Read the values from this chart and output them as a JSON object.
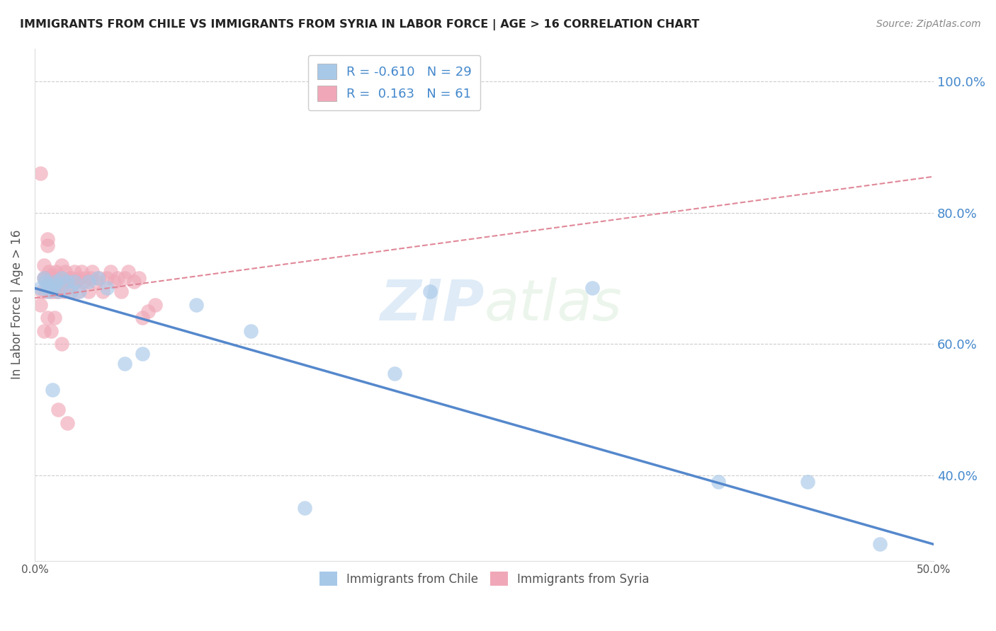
{
  "title": "IMMIGRANTS FROM CHILE VS IMMIGRANTS FROM SYRIA IN LABOR FORCE | AGE > 16 CORRELATION CHART",
  "source": "Source: ZipAtlas.com",
  "ylabel": "In Labor Force | Age > 16",
  "xlim": [
    0.0,
    0.5
  ],
  "ylim": [
    0.27,
    1.05
  ],
  "xticks": [
    0.0,
    0.5
  ],
  "xticklabels": [
    "0.0%",
    "50.0%"
  ],
  "yticks": [
    0.4,
    0.6,
    0.8,
    1.0
  ],
  "yticklabels": [
    "40.0%",
    "60.0%",
    "80.0%",
    "100.0%"
  ],
  "legend_label1": "Immigrants from Chile",
  "legend_label2": "Immigrants from Syria",
  "chile_color": "#a8c8e8",
  "syria_color": "#f0a8b8",
  "chile_line_color": "#5588cc",
  "syria_line_color": "#e08898",
  "R_chile": -0.61,
  "N_chile": 29,
  "R_syria": 0.163,
  "N_syria": 61,
  "background_color": "#ffffff",
  "grid_color": "#cccccc",
  "chile_line_y0": 0.685,
  "chile_line_y1": 0.295,
  "syria_line_y0": 0.67,
  "syria_line_y1": 0.855,
  "chile_x": [
    0.003,
    0.005,
    0.006,
    0.007,
    0.008,
    0.009,
    0.01,
    0.011,
    0.012,
    0.013,
    0.015,
    0.018,
    0.02,
    0.022,
    0.025,
    0.03,
    0.035,
    0.04,
    0.05,
    0.06,
    0.09,
    0.12,
    0.15,
    0.2,
    0.22,
    0.31,
    0.38,
    0.43,
    0.47
  ],
  "chile_y": [
    0.685,
    0.7,
    0.695,
    0.69,
    0.68,
    0.685,
    0.53,
    0.69,
    0.695,
    0.68,
    0.7,
    0.695,
    0.68,
    0.695,
    0.68,
    0.695,
    0.7,
    0.685,
    0.57,
    0.585,
    0.66,
    0.62,
    0.35,
    0.555,
    0.68,
    0.685,
    0.39,
    0.39,
    0.295
  ],
  "syria_x": [
    0.003,
    0.004,
    0.005,
    0.005,
    0.006,
    0.006,
    0.007,
    0.007,
    0.008,
    0.008,
    0.009,
    0.009,
    0.01,
    0.01,
    0.011,
    0.011,
    0.012,
    0.012,
    0.013,
    0.014,
    0.015,
    0.015,
    0.016,
    0.017,
    0.018,
    0.019,
    0.02,
    0.021,
    0.022,
    0.023,
    0.024,
    0.025,
    0.026,
    0.027,
    0.028,
    0.03,
    0.031,
    0.032,
    0.034,
    0.036,
    0.038,
    0.04,
    0.042,
    0.044,
    0.046,
    0.048,
    0.05,
    0.052,
    0.055,
    0.058,
    0.06,
    0.063,
    0.067,
    0.003,
    0.005,
    0.007,
    0.009,
    0.011,
    0.013,
    0.015,
    0.018
  ],
  "syria_y": [
    0.86,
    0.68,
    0.7,
    0.72,
    0.68,
    0.7,
    0.75,
    0.76,
    0.69,
    0.71,
    0.68,
    0.7,
    0.69,
    0.705,
    0.68,
    0.7,
    0.695,
    0.71,
    0.68,
    0.695,
    0.7,
    0.72,
    0.68,
    0.71,
    0.695,
    0.7,
    0.68,
    0.7,
    0.71,
    0.695,
    0.68,
    0.7,
    0.71,
    0.695,
    0.7,
    0.68,
    0.7,
    0.71,
    0.695,
    0.7,
    0.68,
    0.7,
    0.71,
    0.695,
    0.7,
    0.68,
    0.7,
    0.71,
    0.695,
    0.7,
    0.64,
    0.65,
    0.66,
    0.66,
    0.62,
    0.64,
    0.62,
    0.64,
    0.5,
    0.6,
    0.48
  ]
}
